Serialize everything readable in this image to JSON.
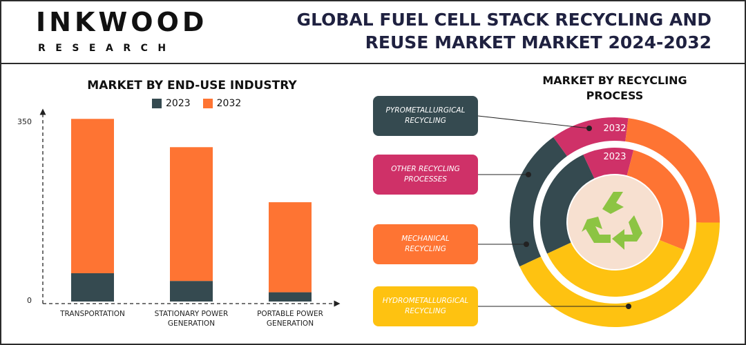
{
  "header": {
    "logo_main": "INKWOOD",
    "logo_sub": "RESEARCH",
    "title_line1": "GLOBAL FUEL CELL STACK RECYCLING AND",
    "title_line2": "REUSE MARKET MARKET 2024-2032"
  },
  "colors": {
    "dark": "#354a50",
    "orange": "#fe7433",
    "magenta": "#cf3168",
    "yellow": "#fec211",
    "center": "#f7e0d0",
    "recycle_green": "#8cc443"
  },
  "chart_data": [
    {
      "type": "bar",
      "stacked": true,
      "title": "MARKET BY END-USE INDUSTRY",
      "xlabel": "",
      "ylabel": "",
      "ylim": [
        0,
        350
      ],
      "ytick_labels": [
        "350",
        "0"
      ],
      "categories": [
        "TRANSPORTATION",
        "STATIONARY POWER GENERATION",
        "PORTABLE POWER GENERATION"
      ],
      "series": [
        {
          "name": "2023",
          "values": [
            55,
            40,
            18
          ]
        },
        {
          "name": "2032",
          "values": [
            300,
            260,
            175
          ]
        }
      ],
      "legend": "top"
    },
    {
      "type": "pie",
      "donut": true,
      "title": "MARKET BY RECYCLING PROCESS",
      "categories": [
        "PYROMETALLURGICAL RECYCLING",
        "OTHER RECYCLING PROCESSES",
        "MECHANICAL RECYCLING",
        "HYDROMETALLURGICAL RECYCLING"
      ],
      "rings": [
        {
          "name": "2032",
          "values": [
            22,
            12,
            23,
            43
          ]
        },
        {
          "name": "2023",
          "values": [
            25,
            11,
            27,
            37
          ]
        }
      ]
    }
  ]
}
